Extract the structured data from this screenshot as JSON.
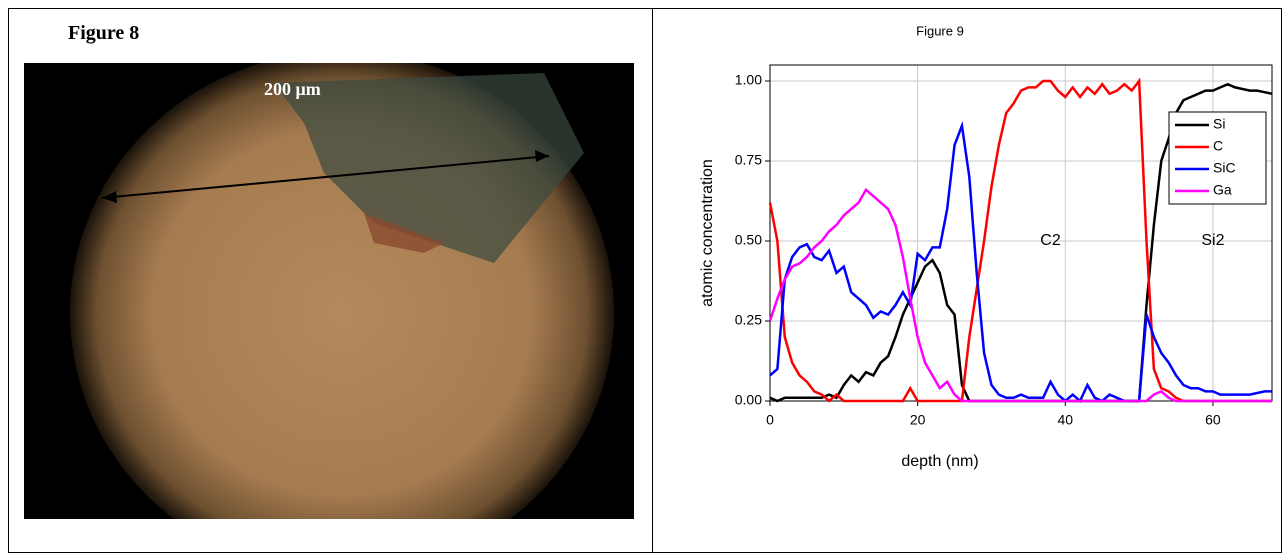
{
  "figure8": {
    "label": "Figure 8",
    "scale_label": "200 μm"
  },
  "chart_data": {
    "type": "line",
    "title": "Figure 9",
    "x_label": "depth (nm)",
    "y_label": "atomic concentration",
    "annotations": [
      {
        "text": "C2",
        "x": 38,
        "y": 0.5
      },
      {
        "text": "Si2",
        "x": 60,
        "y": 0.5
      }
    ],
    "x": [
      0,
      1,
      2,
      3,
      4,
      5,
      6,
      7,
      8,
      9,
      10,
      11,
      12,
      13,
      14,
      15,
      16,
      17,
      18,
      19,
      20,
      21,
      22,
      23,
      24,
      25,
      26,
      27,
      28,
      29,
      30,
      31,
      32,
      33,
      34,
      35,
      36,
      37,
      38,
      39,
      40,
      41,
      42,
      43,
      44,
      45,
      46,
      47,
      48,
      49,
      50,
      51,
      52,
      53,
      54,
      55,
      56,
      57,
      58,
      59,
      60,
      61,
      62,
      63,
      64,
      65,
      66,
      67,
      68
    ],
    "series": [
      {
        "name": "Si",
        "color": "#000000",
        "values": [
          0.01,
          0,
          0.01,
          0.01,
          0.01,
          0.01,
          0.01,
          0.01,
          0.02,
          0.01,
          0.05,
          0.08,
          0.06,
          0.09,
          0.08,
          0.12,
          0.14,
          0.2,
          0.27,
          0.32,
          0.37,
          0.42,
          0.44,
          0.4,
          0.3,
          0.27,
          0.05,
          0,
          0,
          0,
          0,
          0,
          0,
          0,
          0,
          0,
          0,
          0,
          0,
          0,
          0,
          0,
          0,
          0,
          0,
          0,
          0,
          0,
          0,
          0,
          0,
          0.3,
          0.55,
          0.75,
          0.82,
          0.9,
          0.94,
          0.95,
          0.96,
          0.97,
          0.97,
          0.98,
          0.99,
          0.98,
          0.975,
          0.97,
          0.97,
          0.965,
          0.96
        ]
      },
      {
        "name": "C",
        "color": "#ff0000",
        "values": [
          0.62,
          0.5,
          0.2,
          0.12,
          0.08,
          0.06,
          0.03,
          0.02,
          0,
          0.02,
          0,
          0,
          0,
          0,
          0,
          0,
          0,
          0,
          0,
          0.04,
          0,
          0,
          0,
          0,
          0,
          0,
          0,
          0.2,
          0.35,
          0.5,
          0.67,
          0.8,
          0.9,
          0.93,
          0.97,
          0.98,
          0.98,
          1,
          1,
          0.97,
          0.95,
          0.98,
          0.95,
          0.98,
          0.96,
          0.99,
          0.96,
          0.97,
          0.99,
          0.97,
          1,
          0.5,
          0.1,
          0.04,
          0.03,
          0.01,
          0,
          0,
          0,
          0,
          0,
          0,
          0,
          0,
          0,
          0,
          0,
          0,
          0
        ]
      },
      {
        "name": "SiC",
        "color": "#0000ff",
        "values": [
          0.08,
          0.1,
          0.38,
          0.45,
          0.48,
          0.49,
          0.45,
          0.44,
          0.47,
          0.4,
          0.42,
          0.34,
          0.32,
          0.3,
          0.26,
          0.28,
          0.27,
          0.3,
          0.34,
          0.3,
          0.46,
          0.44,
          0.48,
          0.48,
          0.6,
          0.8,
          0.86,
          0.7,
          0.4,
          0.15,
          0.05,
          0.02,
          0.01,
          0.01,
          0.02,
          0.01,
          0.01,
          0.01,
          0.06,
          0.02,
          0,
          0.02,
          0,
          0.05,
          0.01,
          0,
          0.02,
          0.01,
          0,
          0,
          0,
          0.27,
          0.2,
          0.15,
          0.12,
          0.08,
          0.05,
          0.04,
          0.04,
          0.03,
          0.03,
          0.02,
          0.02,
          0.02,
          0.02,
          0.02,
          0.025,
          0.03,
          0.03
        ]
      },
      {
        "name": "Ga",
        "color": "#ff00ff",
        "values": [
          0.25,
          0.32,
          0.38,
          0.42,
          0.43,
          0.45,
          0.48,
          0.5,
          0.53,
          0.55,
          0.58,
          0.6,
          0.62,
          0.66,
          0.64,
          0.62,
          0.6,
          0.55,
          0.45,
          0.32,
          0.2,
          0.12,
          0.08,
          0.04,
          0.06,
          0.02,
          0,
          0,
          0,
          0,
          0,
          0,
          0,
          0,
          0,
          0,
          0,
          0,
          0,
          0,
          0,
          0,
          0,
          0,
          0,
          0,
          0,
          0,
          0,
          0,
          0,
          0,
          0.02,
          0.03,
          0.01,
          0,
          0,
          0,
          0,
          0,
          0,
          0,
          0,
          0,
          0,
          0,
          0,
          0,
          0
        ]
      }
    ],
    "xlim": [
      0,
      68
    ],
    "ylim": [
      0,
      1.05
    ],
    "xticks": [
      0,
      20,
      40,
      60
    ],
    "yticks": [
      {
        "value": 0,
        "label": "0.00"
      },
      {
        "value": 0.25,
        "label": "0.25"
      },
      {
        "value": 0.5,
        "label": "0.50"
      },
      {
        "value": 0.75,
        "label": "0.75"
      },
      {
        "value": 1,
        "label": "1.00"
      }
    ],
    "grid": true,
    "legend": "upper right"
  }
}
